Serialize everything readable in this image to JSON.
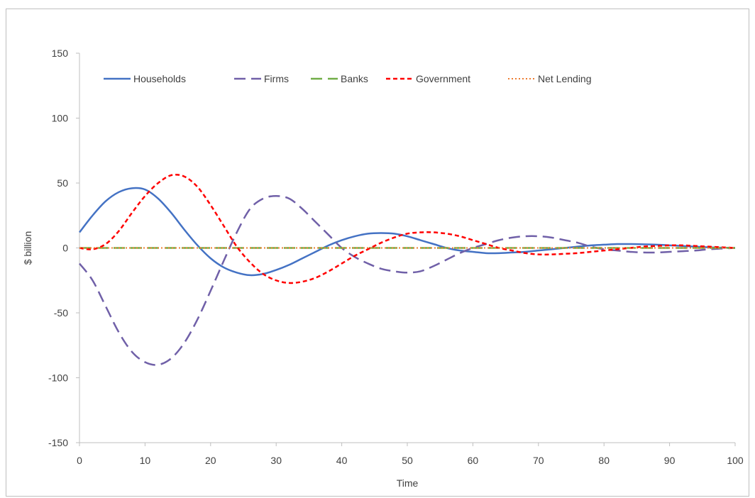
{
  "chart_data": {
    "type": "line",
    "title": "",
    "xlabel": "Time",
    "ylabel": "$ billion",
    "xlim": [
      0,
      100
    ],
    "ylim": [
      -150,
      150
    ],
    "x_ticks": [
      0,
      10,
      20,
      30,
      40,
      50,
      60,
      70,
      80,
      90,
      100
    ],
    "y_ticks": [
      150,
      100,
      50,
      0,
      -50,
      -100,
      -150
    ],
    "grid": false,
    "legend_position": "top-left, inside",
    "x": [
      0,
      2,
      4,
      6,
      8,
      10,
      12,
      14,
      16,
      18,
      20,
      22,
      24,
      26,
      28,
      30,
      32,
      34,
      36,
      38,
      40,
      42,
      44,
      46,
      48,
      50,
      52,
      54,
      56,
      58,
      60,
      62,
      64,
      66,
      68,
      70,
      72,
      74,
      76,
      78,
      80,
      82,
      84,
      86,
      88,
      90,
      92,
      94,
      96,
      98,
      100
    ],
    "series": [
      {
        "name": "Households",
        "color": "#4472c4",
        "dash": "solid",
        "values": [
          12,
          25,
          36,
          43,
          46,
          45,
          38,
          27,
          14,
          2,
          -8,
          -15,
          -19,
          -21,
          -20,
          -17,
          -13,
          -8,
          -3,
          2,
          6,
          9,
          11,
          11.5,
          11,
          9,
          6,
          3,
          0,
          -2,
          -3,
          -4,
          -4,
          -3.5,
          -3,
          -2,
          -1,
          0,
          1,
          2,
          2.5,
          3,
          3,
          2.8,
          2.5,
          2,
          1.5,
          1,
          0.5,
          0.2,
          0
        ]
      },
      {
        "name": "Firms",
        "color": "#7060a8",
        "dash": "long-dash",
        "values": [
          -12,
          -25,
          -45,
          -65,
          -80,
          -88,
          -90,
          -85,
          -73,
          -55,
          -33,
          -10,
          12,
          30,
          38,
          40,
          38,
          30,
          20,
          10,
          0,
          -7,
          -12,
          -16,
          -18,
          -19,
          -18,
          -14,
          -9,
          -4,
          0,
          3,
          6,
          8,
          9,
          9,
          8,
          6,
          4,
          1,
          -1,
          -2,
          -3,
          -3.5,
          -3.5,
          -3,
          -2.5,
          -2,
          -1,
          -0.5,
          0
        ]
      },
      {
        "name": "Banks",
        "color": "#70ad47",
        "dash": "long-dash",
        "values": [
          0,
          0,
          0,
          0,
          0,
          0,
          0,
          0,
          0,
          0,
          0,
          0,
          0,
          0,
          0,
          0,
          0,
          0,
          0,
          0,
          0,
          0,
          0,
          0,
          0,
          0,
          0,
          0,
          0,
          0,
          0,
          0,
          0,
          0,
          0,
          0,
          0,
          0,
          0,
          0,
          0,
          0,
          0,
          0,
          0,
          0,
          0,
          0,
          0,
          0,
          0
        ]
      },
      {
        "name": "Government",
        "color": "#ff0000",
        "dash": "short-dash",
        "values": [
          0,
          -1,
          3,
          13,
          27,
          40,
          50,
          56,
          55,
          47,
          33,
          17,
          1,
          -11,
          -20,
          -25,
          -27,
          -26,
          -23,
          -18,
          -12,
          -6,
          -1,
          4,
          8,
          11,
          12,
          12,
          11,
          9,
          6,
          3,
          0,
          -2,
          -4,
          -5,
          -5,
          -4.5,
          -4,
          -3,
          -2,
          -1,
          0,
          1,
          1.5,
          2,
          2,
          1.5,
          1,
          0.5,
          0
        ]
      },
      {
        "name": "Net Lending",
        "color": "#ed7d31",
        "dash": "dotted",
        "values": [
          0,
          0,
          0,
          0,
          0,
          0,
          0,
          0,
          0,
          0,
          0,
          0,
          0,
          0,
          0,
          0,
          0,
          0,
          0,
          0,
          0,
          0,
          0,
          0,
          0,
          0,
          0,
          0,
          0,
          0,
          0,
          0,
          0,
          0,
          0,
          0,
          0,
          0,
          0,
          0,
          0,
          0,
          0,
          0,
          0,
          0,
          0,
          0,
          0,
          0,
          0
        ]
      }
    ]
  }
}
